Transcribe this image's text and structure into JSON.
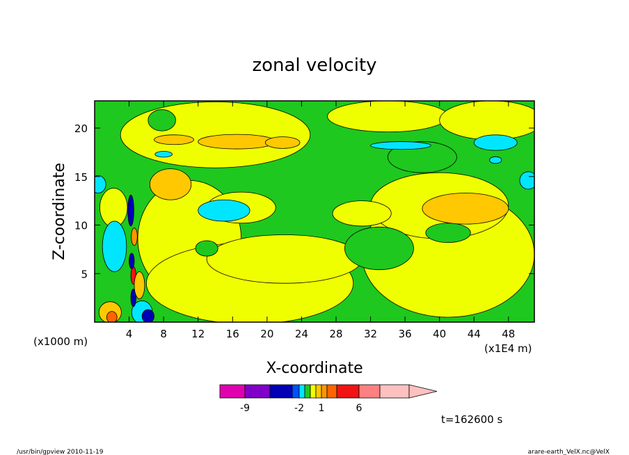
{
  "chart_data": {
    "type": "heatmap",
    "title": "zonal velocity",
    "xlabel": "X-coordinate",
    "ylabel": "Z-coordinate",
    "x_scale_label": "(x1E4 m)",
    "y_scale_label": "(x1000 m)",
    "xlim": [
      0,
      51
    ],
    "ylim": [
      0,
      22.8
    ],
    "x_ticks": [
      "4",
      "8",
      "12",
      "16",
      "20",
      "24",
      "28",
      "32",
      "36",
      "40",
      "44",
      "48"
    ],
    "y_ticks": [
      "5",
      "10",
      "15",
      "20"
    ],
    "colorbar": {
      "colors": [
        "#e000b0",
        "#8000c8",
        "#0000b4",
        "#0050ff",
        "#00e6ff",
        "#1ec81e",
        "#f0ff00",
        "#ffc800",
        "#ff9600",
        "#ff6400",
        "#f01414",
        "#ff8080",
        "#ffc0c0"
      ],
      "tick_labels": [
        "-9",
        "-2",
        "1",
        "6"
      ]
    },
    "background_value_color": "#1ec81e",
    "regions": [
      {
        "color": "#f0ff00",
        "cx": 14,
        "cy": 19.3,
        "rx": 11,
        "ry": 3.4
      },
      {
        "color": "#f0ff00",
        "cx": 34,
        "cy": 21.2,
        "rx": 7,
        "ry": 1.6
      },
      {
        "color": "#f0ff00",
        "cx": 46,
        "cy": 20.8,
        "rx": 6,
        "ry": 2
      },
      {
        "color": "#f0ff00",
        "cx": 11,
        "cy": 8.6,
        "rx": 6,
        "ry": 6
      },
      {
        "color": "#f0ff00",
        "cx": 18,
        "cy": 4,
        "rx": 12,
        "ry": 4.2
      },
      {
        "color": "#f0ff00",
        "cx": 22,
        "cy": 6.5,
        "rx": 9,
        "ry": 2.5
      },
      {
        "color": "#f0ff00",
        "cx": 41,
        "cy": 7,
        "rx": 10,
        "ry": 6.5
      },
      {
        "color": "#f0ff00",
        "cx": 40,
        "cy": 12,
        "rx": 8,
        "ry": 3.4
      },
      {
        "color": "#f0ff00",
        "cx": 17,
        "cy": 11.8,
        "rx": 4,
        "ry": 1.6
      },
      {
        "color": "#f0ff00",
        "cx": 31,
        "cy": 11.2,
        "rx": 3.4,
        "ry": 1.3
      },
      {
        "color": "#f0ff00",
        "cx": 2.2,
        "cy": 11.8,
        "rx": 1.6,
        "ry": 2
      },
      {
        "color": "#1ec81e",
        "cx": 33,
        "cy": 7.6,
        "rx": 4,
        "ry": 2.2
      },
      {
        "color": "#1ec81e",
        "cx": 38,
        "cy": 17,
        "rx": 4,
        "ry": 1.6
      },
      {
        "color": "#1ec81e",
        "cx": 41,
        "cy": 9.2,
        "rx": 2.6,
        "ry": 1
      },
      {
        "color": "#1ec81e",
        "cx": 13,
        "cy": 7.6,
        "rx": 1.3,
        "ry": 0.8
      },
      {
        "color": "#1ec81e",
        "cx": 7.8,
        "cy": 20.8,
        "rx": 1.6,
        "ry": 1.1
      },
      {
        "color": "#ffc800",
        "cx": 8.8,
        "cy": 14.2,
        "rx": 2.4,
        "ry": 1.6
      },
      {
        "color": "#ffc800",
        "cx": 43,
        "cy": 11.7,
        "rx": 5,
        "ry": 1.6
      },
      {
        "color": "#ffc800",
        "cx": 9.2,
        "cy": 18.8,
        "rx": 2.3,
        "ry": 0.5
      },
      {
        "color": "#ffc800",
        "cx": 16.5,
        "cy": 18.6,
        "rx": 4.5,
        "ry": 0.75
      },
      {
        "color": "#ffc800",
        "cx": 21.8,
        "cy": 18.5,
        "rx": 2,
        "ry": 0.6
      },
      {
        "color": "#00e6ff",
        "cx": 15,
        "cy": 11.5,
        "rx": 3,
        "ry": 1.1
      },
      {
        "color": "#00e6ff",
        "cx": 35.5,
        "cy": 18.2,
        "rx": 3.5,
        "ry": 0.4
      },
      {
        "color": "#00e6ff",
        "cx": 46.5,
        "cy": 18.5,
        "rx": 2.5,
        "ry": 0.8
      },
      {
        "color": "#00e6ff",
        "cx": 50.3,
        "cy": 14.6,
        "rx": 1,
        "ry": 0.9
      },
      {
        "color": "#00e6ff",
        "cx": 0.4,
        "cy": 14.2,
        "rx": 0.9,
        "ry": 0.9
      },
      {
        "color": "#00e6ff",
        "cx": 8,
        "cy": 17.3,
        "rx": 1,
        "ry": 0.3
      },
      {
        "color": "#00e6ff",
        "cx": 46.5,
        "cy": 16.7,
        "rx": 0.7,
        "ry": 0.35
      },
      {
        "color": "#00e6ff",
        "cx": 2.3,
        "cy": 7.8,
        "rx": 1.4,
        "ry": 2.6
      },
      {
        "color": "#00e6ff",
        "cx": 5.5,
        "cy": 1.0,
        "rx": 1.2,
        "ry": 1.2
      },
      {
        "color": "#ffc800",
        "cx": 1.8,
        "cy": 1.0,
        "rx": 1.3,
        "ry": 1.1
      },
      {
        "color": "#ff6400",
        "cx": 2.0,
        "cy": 0.5,
        "rx": 0.6,
        "ry": 0.6
      },
      {
        "color": "#0000b4",
        "cx": 6.2,
        "cy": 0.6,
        "rx": 0.7,
        "ry": 0.7
      },
      {
        "color": "#f01414",
        "cx": 4.5,
        "cy": 4.8,
        "rx": 0.3,
        "ry": 0.9
      },
      {
        "color": "#0000b4",
        "cx": 4.2,
        "cy": 11.5,
        "rx": 0.35,
        "ry": 1.6
      },
      {
        "color": "#0000b4",
        "cx": 4.3,
        "cy": 6.3,
        "rx": 0.3,
        "ry": 0.8
      },
      {
        "color": "#ff9600",
        "cx": 4.6,
        "cy": 8.8,
        "rx": 0.35,
        "ry": 0.9
      },
      {
        "color": "#0000b4",
        "cx": 4.5,
        "cy": 2.5,
        "rx": 0.3,
        "ry": 0.9
      },
      {
        "color": "#ffc800",
        "cx": 5.2,
        "cy": 3.8,
        "rx": 0.6,
        "ry": 1.4
      }
    ]
  },
  "time_label": "t=162600 s",
  "footer": {
    "left": "/usr/bin/gpview   2010-11-19",
    "right": "arare-earth_VelX.nc@VelX"
  }
}
